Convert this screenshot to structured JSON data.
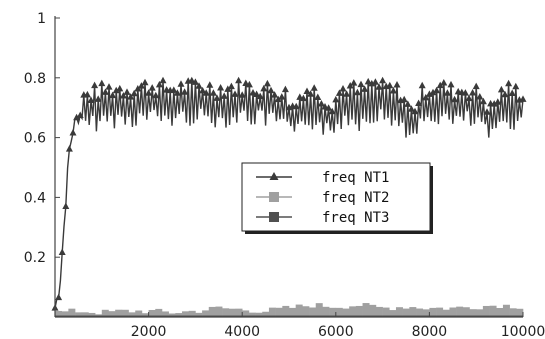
{
  "chart_data": {
    "type": "line",
    "title": "",
    "xlabel": "",
    "ylabel": "",
    "xlim": [
      0,
      10000
    ],
    "ylim": [
      0,
      1
    ],
    "x_ticks": [
      "2000",
      "4000",
      "6000",
      "8000",
      "10000"
    ],
    "y_ticks": [
      "0.2",
      "0.4",
      "0.6",
      "0.8",
      "1"
    ],
    "grid": false,
    "legend": {
      "placement": "center-right"
    },
    "series": [
      {
        "name": "freq NT1",
        "marker": "triangle",
        "color": "#3a3a3a",
        "x": [
          0,
          100,
          200,
          300,
          400,
          500,
          700,
          900,
          1200,
          1600,
          2000,
          2500,
          3000,
          3500,
          4000,
          4500,
          4900,
          5100,
          5300,
          5600,
          5900,
          6200,
          6500,
          6800,
          7100,
          7400,
          7600,
          7900,
          8200,
          8500,
          8800,
          9100,
          9300,
          9600,
          9900,
          10000
        ],
        "y": [
          0.03,
          0.1,
          0.32,
          0.55,
          0.64,
          0.67,
          0.69,
          0.7,
          0.71,
          0.71,
          0.72,
          0.71,
          0.72,
          0.71,
          0.72,
          0.71,
          0.7,
          0.64,
          0.71,
          0.7,
          0.66,
          0.72,
          0.7,
          0.73,
          0.71,
          0.7,
          0.63,
          0.71,
          0.72,
          0.7,
          0.71,
          0.69,
          0.64,
          0.71,
          0.7,
          0.7
        ],
        "range_low": 0.6,
        "range_high": 0.79
      },
      {
        "name": "freq NT2",
        "marker": "square",
        "color": "#a0a0a0",
        "x": [
          0,
          500,
          1000,
          1500,
          2000,
          2500,
          3000,
          3500,
          4000,
          4500,
          5000,
          5500,
          6000,
          6500,
          7000,
          7500,
          8000,
          8500,
          9000,
          9500,
          10000
        ],
        "y": [
          0.015,
          0.02,
          0.015,
          0.02,
          0.02,
          0.015,
          0.02,
          0.03,
          0.025,
          0.02,
          0.03,
          0.04,
          0.035,
          0.04,
          0.03,
          0.035,
          0.03,
          0.03,
          0.035,
          0.04,
          0.035
        ]
      },
      {
        "name": "freq NT3",
        "marker": "square",
        "color": "#505050",
        "x": [
          0,
          500,
          1000,
          1500,
          2000,
          2500,
          3000,
          3500,
          4000,
          4500,
          5000,
          5500,
          6000,
          6500,
          7000,
          7500,
          8000,
          8500,
          9000,
          9500,
          10000
        ],
        "y": [
          0.005,
          0.005,
          0.005,
          0.005,
          0.005,
          0.005,
          0.005,
          0.005,
          0.005,
          0.005,
          0.005,
          0.005,
          0.005,
          0.005,
          0.005,
          0.005,
          0.005,
          0.005,
          0.005,
          0.005,
          0.005
        ]
      }
    ]
  }
}
